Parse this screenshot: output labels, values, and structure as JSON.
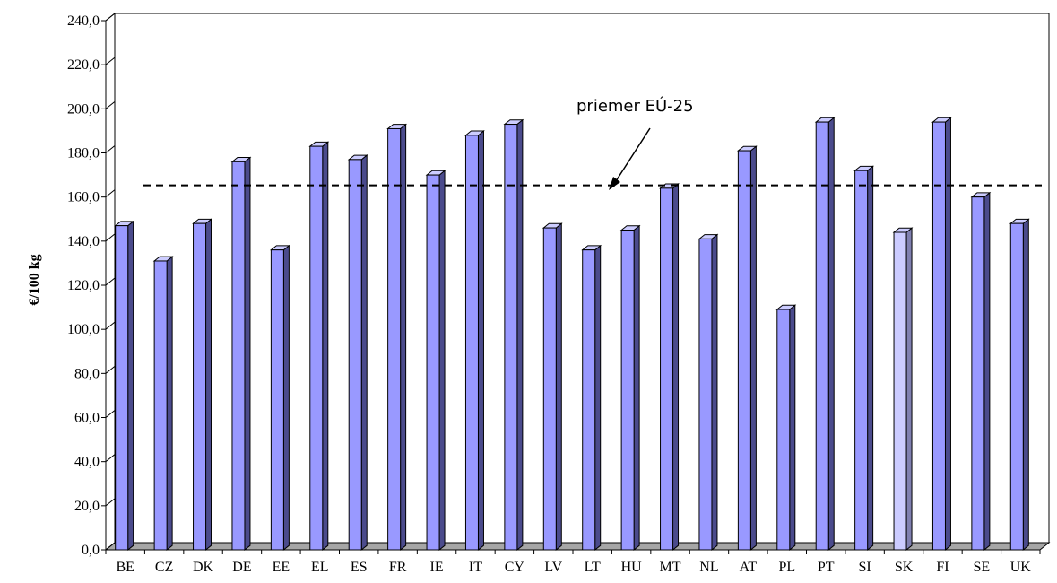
{
  "chart_data": {
    "type": "bar",
    "title": "",
    "xlabel": "",
    "ylabel": "€/100 kg",
    "ylim": [
      0,
      240
    ],
    "ytick_step": 20,
    "ytick_labels": [
      "0,0",
      "20,0",
      "40,0",
      "60,0",
      "80,0",
      "100,0",
      "120,0",
      "140,0",
      "160,0",
      "180,0",
      "200,0",
      "220,0",
      "240,0"
    ],
    "categories": [
      "BE",
      "CZ",
      "DK",
      "DE",
      "EE",
      "EL",
      "ES",
      "FR",
      "IE",
      "IT",
      "CY",
      "LV",
      "LT",
      "HU",
      "MT",
      "NL",
      "AT",
      "PL",
      "PT",
      "SI",
      "SK",
      "FI",
      "SE",
      "UK"
    ],
    "values": [
      147,
      131,
      148,
      176,
      136,
      183,
      177,
      191,
      170,
      188,
      193,
      146,
      136,
      145,
      164,
      141,
      181,
      109,
      194,
      172,
      144,
      194,
      160,
      148
    ],
    "highlight_category": "SK",
    "reference_line": {
      "label": "priemer EÚ-25",
      "value": 164
    },
    "grid": false,
    "colors": {
      "bar_front": "#9999ff",
      "bar_side": "#4b4b8c",
      "bar_top": "#ccccff",
      "highlight_front": "#ccccff",
      "highlight_side": "#8080b0",
      "floor": "#a6a6a6",
      "reference_line": "#000000"
    }
  }
}
